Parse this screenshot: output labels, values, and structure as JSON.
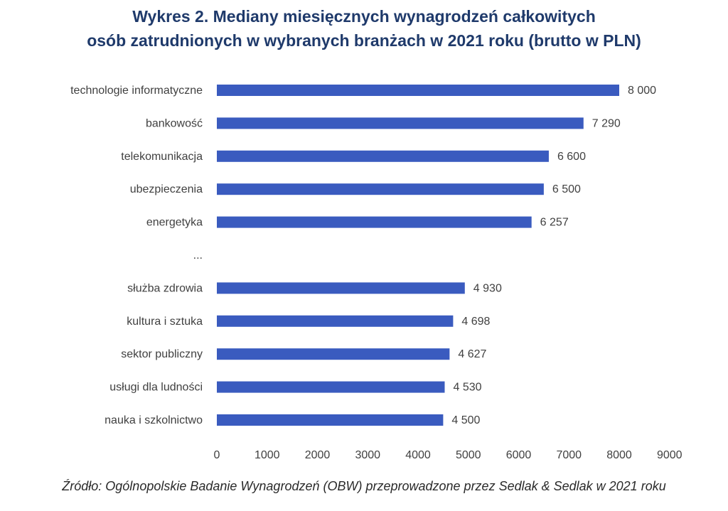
{
  "chart_data": {
    "type": "bar",
    "orientation": "horizontal",
    "title_line1": "Wykres 2. Mediany miesięcznych wynagrodzeń całkowitych",
    "title_line2": "osób zatrudnionych w wybranych branżach w 2021 roku (brutto w PLN)",
    "categories": [
      "technologie informatyczne",
      "bankowość",
      "telekomunikacja",
      "ubezpieczenia",
      "energetyka",
      "...",
      "służba zdrowia",
      "kultura i sztuka",
      "sektor publiczny",
      "usługi dla ludności",
      "nauka i szkolnictwo"
    ],
    "values": [
      8000,
      7290,
      6600,
      6500,
      6257,
      null,
      4930,
      4698,
      4627,
      4530,
      4500
    ],
    "value_labels": [
      "8 000",
      "7 290",
      "6 600",
      "6 500",
      "6 257",
      "",
      "4 930",
      "4 698",
      "4 627",
      "4 530",
      "4 500"
    ],
    "xticks": [
      0,
      1000,
      2000,
      3000,
      4000,
      5000,
      6000,
      7000,
      8000,
      9000
    ],
    "xlim": [
      0,
      9000
    ],
    "grid": false,
    "bar_color": "#3a5bbf"
  },
  "source": "Źródło: Ogólnopolskie Badanie Wynagrodzeń (OBW) przeprowadzone przez Sedlak & Sedlak w 2021 roku"
}
